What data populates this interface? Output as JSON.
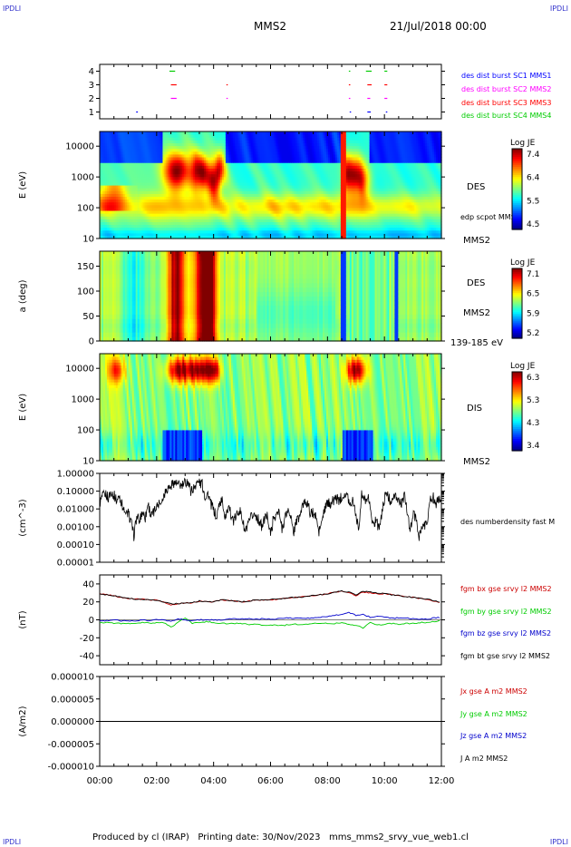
{
  "corner_labels": {
    "tl": "IPDLI",
    "tr": "IPDLI",
    "bl": "IPDLI",
    "br": "IPDLI"
  },
  "header": {
    "spacecraft": "MMS2",
    "datetime": "21/Jul/2018 00:00"
  },
  "footer": "Produced by cl (IRAP)   Printing date: 30/Nov/2023   mms_mms2_srvy_vue_web1.cl",
  "colors": {
    "mms1": "#0000ff",
    "mms2": "#ff00ff",
    "mms3": "#ff0000",
    "mms4": "#00cc00",
    "bx": "#cc0000",
    "by": "#00cc00",
    "bz": "#0000cc",
    "bt": "#000000"
  },
  "chart_data": [
    {
      "type": "scatter",
      "title": "",
      "ylim": [
        0.5,
        4.5
      ],
      "yticks": [
        "1",
        "2",
        "3",
        "4"
      ],
      "series": [
        {
          "name": "des dist burst SC1 MMS1",
          "row": 1,
          "color": "#0000ff",
          "intervals": [
            [
              1.28,
              1.34
            ],
            [
              8.78,
              8.82
            ],
            [
              9.4,
              9.52
            ],
            [
              10.05,
              10.1
            ]
          ]
        },
        {
          "name": "des dist burst SC2 MMS2",
          "row": 2,
          "color": "#ff00ff",
          "intervals": [
            [
              2.5,
              2.7
            ],
            [
              4.45,
              4.49
            ],
            [
              8.75,
              8.8
            ],
            [
              9.4,
              9.5
            ],
            [
              10.0,
              10.1
            ]
          ]
        },
        {
          "name": "des dist burst SC3 MMS3",
          "row": 3,
          "color": "#ff0000",
          "intervals": [
            [
              2.5,
              2.7
            ],
            [
              4.45,
              4.49
            ],
            [
              8.75,
              8.8
            ],
            [
              9.4,
              9.55
            ],
            [
              10.0,
              10.1
            ]
          ]
        },
        {
          "name": "des dist burst SC4 MMS4",
          "row": 4,
          "color": "#00cc00",
          "intervals": [
            [
              2.45,
              2.65
            ],
            [
              8.75,
              8.8
            ],
            [
              9.35,
              9.55
            ],
            [
              10.0,
              10.1
            ]
          ]
        }
      ]
    },
    {
      "type": "heatmap",
      "ylabel": "E (eV)",
      "yscale": "log",
      "ylim": [
        10,
        30000
      ],
      "yticks": [
        "10",
        "100",
        "1000",
        "10000"
      ],
      "label": "DES",
      "sublabel_top": "edp scpot MMS2",
      "sublabel_bottom": "MMS2",
      "colorbar": {
        "title": "Log JE",
        "ticks": [
          "7.4",
          "6.4",
          "5.5",
          "4.5"
        ],
        "min": 4.5,
        "max": 7.4
      }
    },
    {
      "type": "heatmap",
      "ylabel": "a (deg)",
      "ylim": [
        0,
        180
      ],
      "yticks": [
        "0",
        "50",
        "100",
        "150"
      ],
      "label": "DES",
      "sublabel": "MMS2",
      "energy_range": "139-185 eV",
      "colorbar": {
        "title": "Log JE",
        "ticks": [
          "7.1",
          "6.5",
          "5.9",
          "5.2"
        ],
        "min": 5.2,
        "max": 7.1
      }
    },
    {
      "type": "heatmap",
      "ylabel": "E (eV)",
      "yscale": "log",
      "ylim": [
        10,
        30000
      ],
      "yticks": [
        "10",
        "100",
        "1000",
        "10000"
      ],
      "label": "DIS",
      "sublabel": "MMS2",
      "colorbar": {
        "title": "Log JE",
        "ticks": [
          "6.3",
          "5.3",
          "4.3",
          "3.4"
        ],
        "min": 3.4,
        "max": 6.3
      }
    },
    {
      "type": "line",
      "ylabel": "(cm^-3)",
      "yscale": "log",
      "ylim": [
        1e-05,
        1.0
      ],
      "yticks": [
        "0.00001",
        "0.00010",
        "0.00100",
        "0.01000",
        "0.10000",
        "1.00000"
      ],
      "series": [
        {
          "name": "des numberdensity fast M",
          "color": "#000000",
          "x": [
            0,
            0.1,
            0.2,
            0.3,
            0.4,
            0.5,
            0.6,
            0.7,
            0.8,
            0.9,
            1.0,
            1.1,
            1.2,
            1.3,
            1.4,
            1.5,
            1.6,
            1.7,
            1.8,
            1.9,
            2.0,
            2.1,
            2.2,
            2.3,
            2.4,
            2.5,
            2.6,
            2.7,
            2.8,
            2.9,
            3.0,
            3.1,
            3.2,
            3.3,
            3.4,
            3.5,
            3.6,
            3.7,
            3.8,
            3.9,
            4.0,
            4.1,
            4.2,
            4.3,
            4.4,
            4.5,
            4.6,
            4.7,
            4.8,
            4.9,
            5.0,
            5.1,
            5.2,
            5.3,
            5.4,
            5.5,
            5.6,
            5.7,
            5.8,
            5.9,
            6.0,
            6.1,
            6.2,
            6.3,
            6.4,
            6.5,
            6.6,
            6.7,
            6.8,
            6.9,
            7.0,
            7.1,
            7.2,
            7.3,
            7.4,
            7.5,
            7.6,
            7.7,
            7.8,
            7.9,
            8.0,
            8.1,
            8.2,
            8.3,
            8.4,
            8.5,
            8.6,
            8.7,
            8.8,
            8.9,
            9.0,
            9.1,
            9.2,
            9.3,
            9.4,
            9.5,
            9.6,
            9.7,
            9.8,
            9.9,
            10.0,
            10.1,
            10.2,
            10.3,
            10.4,
            10.5,
            10.6,
            10.7,
            10.8,
            10.9,
            11.0,
            11.1,
            11.2,
            11.3,
            11.4,
            11.5,
            11.6,
            11.7,
            11.8,
            11.9,
            12.0
          ],
          "values": [
            0.02,
            0.05,
            0.08,
            0.04,
            0.1,
            0.06,
            0.03,
            0.05,
            0.015,
            0.004,
            0.006,
            0.002,
            0.0003,
            0.004,
            0.002,
            0.008,
            0.003,
            0.02,
            0.004,
            0.006,
            0.015,
            0.02,
            0.03,
            0.1,
            0.15,
            0.2,
            0.3,
            0.25,
            0.22,
            0.2,
            0.3,
            0.35,
            0.1,
            0.15,
            0.3,
            0.28,
            0.25,
            0.05,
            0.08,
            0.02,
            0.01,
            0.003,
            0.02,
            0.03,
            0.004,
            0.01,
            0.006,
            0.002,
            0.004,
            0.01,
            0.003,
            0.0005,
            0.001,
            0.003,
            0.005,
            0.004,
            0.002,
            0.001,
            0.003,
            0.004,
            0.0003,
            0.003,
            0.005,
            0.006,
            0.0008,
            0.003,
            0.008,
            0.005,
            0.0004,
            0.002,
            0.003,
            0.01,
            0.03,
            0.02,
            0.005,
            0.006,
            0.003,
            0.0005,
            0.002,
            0.01,
            0.02,
            0.02,
            0.03,
            0.04,
            0.03,
            0.05,
            0.06,
            0.05,
            0.02,
            0.04,
            0.004,
            0.001,
            0.06,
            0.03,
            0.05,
            0.02,
            0.001,
            0.003,
            0.0008,
            0.004,
            0.04,
            0.06,
            0.03,
            0.05,
            0.04,
            0.03,
            0.02,
            0.05,
            0.008,
            0.0005,
            0.005,
            0.003,
            0.0002,
            0.001,
            0.001,
            0.002,
            0.03,
            0.05,
            0.02,
            0.03,
            0.04
          ]
        }
      ]
    },
    {
      "type": "line",
      "ylabel": "(nT)",
      "ylim": [
        -50,
        50
      ],
      "yticks": [
        "-40",
        "-20",
        "0",
        "20",
        "40"
      ],
      "x": [
        0,
        0.25,
        0.5,
        0.75,
        1.0,
        1.25,
        1.5,
        1.75,
        2.0,
        2.25,
        2.5,
        2.75,
        3.0,
        3.25,
        3.5,
        3.75,
        4.0,
        4.25,
        4.5,
        4.75,
        5.0,
        5.25,
        5.5,
        5.75,
        6.0,
        6.25,
        6.5,
        6.75,
        7.0,
        7.25,
        7.5,
        7.75,
        8.0,
        8.25,
        8.5,
        8.75,
        9.0,
        9.25,
        9.5,
        9.75,
        10.0,
        10.25,
        10.5,
        10.75,
        11.0,
        11.25,
        11.5,
        11.75,
        12.0
      ],
      "series": [
        {
          "name": "fgm bx gse srvy l2 MMS2",
          "color": "#cc0000",
          "values": [
            29,
            28,
            27,
            25,
            24,
            23,
            23,
            22,
            22,
            20,
            16,
            18,
            19,
            19,
            21,
            20,
            20,
            22,
            22,
            21,
            20,
            21,
            22,
            22,
            22,
            23,
            24,
            25,
            25,
            26,
            27,
            28,
            29,
            31,
            32,
            30,
            27,
            31,
            30,
            29,
            29,
            28,
            27,
            26,
            25,
            24,
            23,
            21,
            19
          ]
        },
        {
          "name": "fgm by gse srvy l2 MMS2",
          "color": "#00cc00",
          "values": [
            -3,
            -3,
            -4,
            -4,
            -4,
            -4,
            -3,
            -4,
            -3,
            -3,
            -8,
            -3,
            2,
            -4,
            -3,
            -2,
            -3,
            -4,
            -4,
            -4,
            -4,
            -5,
            -5,
            -6,
            -6,
            -6,
            -6,
            -5,
            -5,
            -5,
            -4,
            -4,
            -4,
            -4,
            -3,
            -5,
            -6,
            -9,
            -3,
            -6,
            -5,
            -4,
            -5,
            -4,
            -4,
            -3,
            -3,
            -2,
            -1
          ]
        },
        {
          "name": "fgm bz gse srvy l2 MMS2",
          "color": "#0000cc",
          "values": [
            -1,
            -1,
            0,
            -1,
            -1,
            -1,
            0,
            -1,
            0,
            0,
            -2,
            1,
            0,
            -1,
            0,
            0,
            0,
            0,
            1,
            1,
            1,
            1,
            1,
            1,
            1,
            1,
            2,
            2,
            2,
            2,
            2,
            3,
            4,
            5,
            6,
            8,
            5,
            6,
            3,
            4,
            3,
            2,
            2,
            2,
            1,
            1,
            1,
            2,
            3
          ]
        },
        {
          "name": "fgm bt gse srvy l2 MMS2",
          "color": "#000000",
          "values": [
            29,
            28,
            27,
            25,
            24,
            23,
            23,
            22,
            22,
            20,
            18,
            18,
            19,
            19,
            21,
            20,
            20,
            22,
            22,
            21,
            20,
            21,
            22,
            22,
            23,
            23,
            24,
            25,
            25,
            26,
            27,
            28,
            29,
            31,
            32,
            31,
            28,
            32,
            31,
            30,
            29,
            28,
            27,
            26,
            25,
            24,
            23,
            21,
            19
          ]
        }
      ]
    },
    {
      "type": "line",
      "ylabel": "(A/m2)",
      "ylim": [
        -1e-05,
        1e-05
      ],
      "yticks": [
        "-0.000010",
        "-0.000005",
        "0.000000",
        "0.000005",
        "0.000010"
      ],
      "series": [
        {
          "name": "Jx gse A m2 MMS2",
          "color": "#cc0000"
        },
        {
          "name": "Jy gse A m2 MMS2",
          "color": "#00cc00"
        },
        {
          "name": "Jz gse A m2 MMS2",
          "color": "#0000cc"
        },
        {
          "name": "J A m2 MMS2",
          "color": "#000000"
        }
      ],
      "value": 0
    }
  ],
  "time_axis": {
    "range_hours": [
      0,
      12
    ],
    "ticks": [
      "00:00",
      "02:00",
      "04:00",
      "06:00",
      "08:00",
      "10:00",
      "12:00"
    ]
  }
}
